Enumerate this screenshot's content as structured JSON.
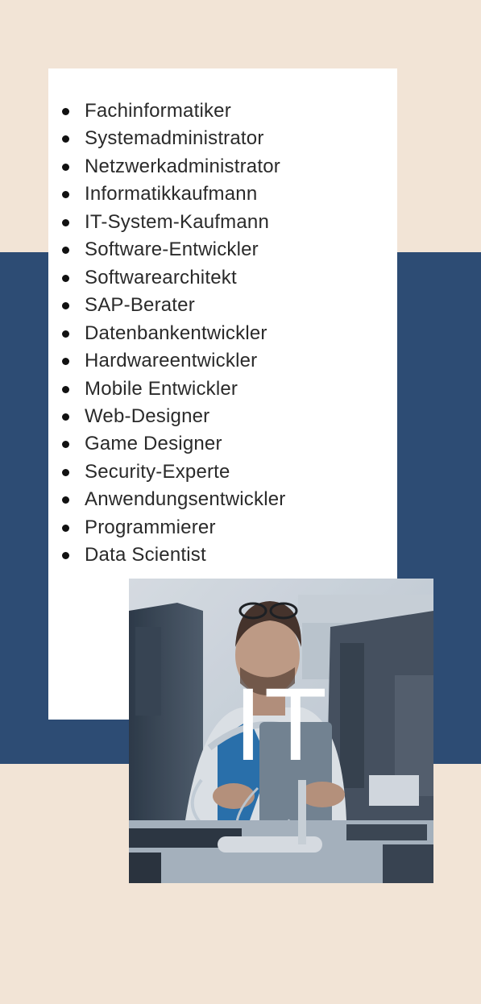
{
  "page": {
    "colors": {
      "background": "#f2e4d6",
      "band": "#2d4c74",
      "card": "#ffffff",
      "text": "#2a2a2a"
    }
  },
  "list": {
    "items": [
      "Fachinformatiker",
      "Systemadministrator",
      "Netzwerkadministrator",
      "Informatikkaufmann",
      "IT-System-Kaufmann",
      "Software-Entwickler",
      "Softwarearchitekt",
      "SAP-Berater",
      "Datenbankentwickler",
      "Hardwareentwickler",
      "Mobile Entwickler",
      "Web-Designer",
      "Game Designer",
      "Security-Experte",
      "Anwendungsentwickler",
      "Programmierer",
      "Data Scientist"
    ]
  },
  "photo": {
    "overlay_text": "IT"
  }
}
